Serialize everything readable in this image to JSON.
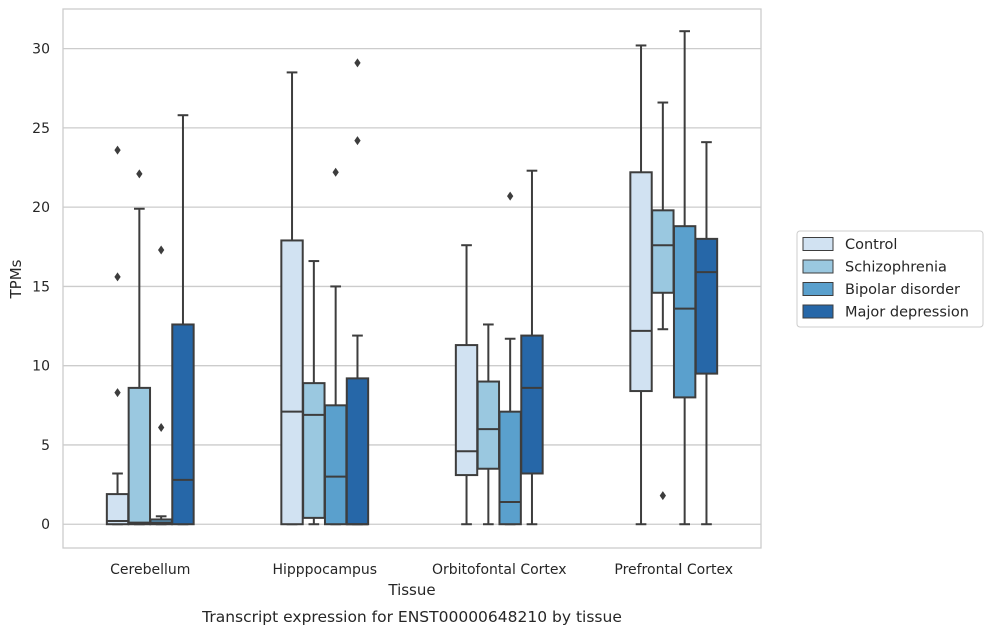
{
  "chart_data": {
    "type": "box",
    "xlabel": "Tissue",
    "ylabel": "TPMs",
    "caption": "Transcript expression for ENST00000648210 by tissue",
    "ylim": [
      -1.5,
      32.5
    ],
    "yticks": [
      0,
      5,
      10,
      15,
      20,
      25,
      30
    ],
    "grid": "horizontal",
    "legend_position": "right",
    "categories": [
      "Cerebellum",
      "Hipppocampus",
      "Orbitofontal Cortex",
      "Prefrontal Cortex"
    ],
    "series": [
      {
        "name": "Control",
        "color": "#d1e2f2",
        "boxes": [
          {
            "whislo": 0,
            "q1": 0,
            "med": 0.2,
            "q3": 1.9,
            "whishi": 3.2,
            "fliers": [
              8.3,
              15.6,
              23.6
            ]
          },
          {
            "whislo": 0,
            "q1": 0,
            "med": 7.1,
            "q3": 17.9,
            "whishi": 28.5,
            "fliers": []
          },
          {
            "whislo": 0,
            "q1": 3.1,
            "med": 4.6,
            "q3": 11.3,
            "whishi": 17.6,
            "fliers": []
          },
          {
            "whislo": 0,
            "q1": 8.4,
            "med": 12.2,
            "q3": 22.2,
            "whishi": 30.2,
            "fliers": []
          }
        ]
      },
      {
        "name": "Schizophrenia",
        "color": "#9ac8e0",
        "boxes": [
          {
            "whislo": 0,
            "q1": 0,
            "med": 0.1,
            "q3": 8.6,
            "whishi": 19.9,
            "fliers": [
              22.1
            ]
          },
          {
            "whislo": 0,
            "q1": 0.4,
            "med": 6.9,
            "q3": 8.9,
            "whishi": 16.6,
            "fliers": []
          },
          {
            "whislo": 0,
            "q1": 3.5,
            "med": 6.0,
            "q3": 9.0,
            "whishi": 12.6,
            "fliers": []
          },
          {
            "whislo": 12.3,
            "q1": 14.6,
            "med": 17.6,
            "q3": 19.8,
            "whishi": 26.6,
            "fliers": [
              1.8
            ]
          }
        ]
      },
      {
        "name": "Bipolar disorder",
        "color": "#5aa0cd",
        "boxes": [
          {
            "whislo": 0,
            "q1": 0,
            "med": 0.1,
            "q3": 0.3,
            "whishi": 0.5,
            "fliers": [
              6.1,
              17.3
            ]
          },
          {
            "whislo": 0,
            "q1": 0,
            "med": 3.0,
            "q3": 7.5,
            "whishi": 15.0,
            "fliers": [
              22.2
            ]
          },
          {
            "whislo": 0,
            "q1": 0,
            "med": 1.4,
            "q3": 7.1,
            "whishi": 11.7,
            "fliers": [
              20.7
            ]
          },
          {
            "whislo": 0,
            "q1": 8.0,
            "med": 13.6,
            "q3": 18.8,
            "whishi": 31.1,
            "fliers": []
          }
        ]
      },
      {
        "name": "Major depression",
        "color": "#2667a8",
        "boxes": [
          {
            "whislo": 0,
            "q1": 0,
            "med": 2.8,
            "q3": 12.6,
            "whishi": 25.8,
            "fliers": []
          },
          {
            "whislo": 0,
            "q1": 0,
            "med": 0,
            "q3": 9.2,
            "whishi": 11.9,
            "fliers": [
              24.2,
              29.1
            ]
          },
          {
            "whislo": 0,
            "q1": 3.2,
            "med": 8.6,
            "q3": 11.9,
            "whishi": 22.3,
            "fliers": []
          },
          {
            "whislo": 0,
            "q1": 9.5,
            "med": 15.9,
            "q3": 18.0,
            "whishi": 24.1,
            "fliers": []
          }
        ]
      }
    ]
  }
}
